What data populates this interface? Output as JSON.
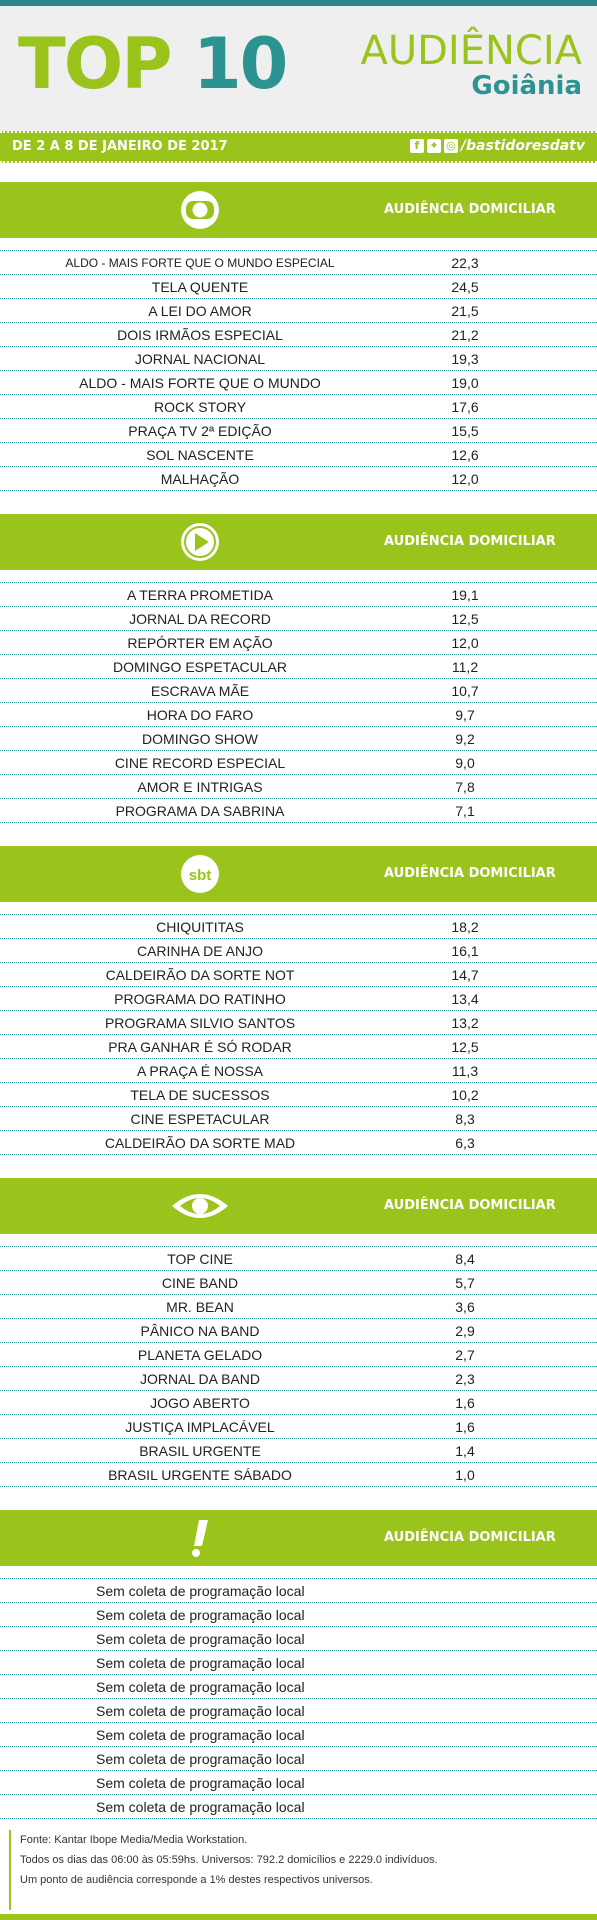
{
  "header": {
    "title_top": "TOP",
    "title_num": "10",
    "brand_1": "AUDIÊNCIA",
    "brand_2": "Goiânia"
  },
  "datebar": {
    "date": "DE 2 A 8 DE JANEIRO DE 2017",
    "handle": "/bastidoresdatv"
  },
  "sections": [
    {
      "logo": "globo-logo",
      "label": "AUDIÊNCIA DOMICILIAR",
      "rows": [
        {
          "name": "ALDO - MAIS FORTE QUE O MUNDO ESPECIAL",
          "value": "22,3"
        },
        {
          "name": "TELA QUENTE",
          "value": "24,5"
        },
        {
          "name": "A LEI DO AMOR",
          "value": "21,5"
        },
        {
          "name": "DOIS IRMÃOS ESPECIAL",
          "value": "21,2"
        },
        {
          "name": "JORNAL NACIONAL",
          "value": "19,3"
        },
        {
          "name": "ALDO - MAIS FORTE QUE O MUNDO",
          "value": "19,0"
        },
        {
          "name": "ROCK STORY",
          "value": "17,6"
        },
        {
          "name": "PRAÇA TV 2ª EDIÇÃO",
          "value": "15,5"
        },
        {
          "name": "SOL NASCENTE",
          "value": "12,6"
        },
        {
          "name": "MALHAÇÃO",
          "value": "12,0"
        }
      ]
    },
    {
      "logo": "record-logo",
      "label": "AUDIÊNCIA DOMICILIAR",
      "rows": [
        {
          "name": "A TERRA PROMETIDA",
          "value": "19,1"
        },
        {
          "name": "JORNAL DA RECORD",
          "value": "12,5"
        },
        {
          "name": "REPÓRTER EM AÇÃO",
          "value": "12,0"
        },
        {
          "name": "DOMINGO ESPETACULAR",
          "value": "11,2"
        },
        {
          "name": "ESCRAVA MÃE",
          "value": "10,7"
        },
        {
          "name": "HORA DO FARO",
          "value": "9,7"
        },
        {
          "name": "DOMINGO SHOW",
          "value": "9,2"
        },
        {
          "name": "CINE RECORD ESPECIAL",
          "value": "9,0"
        },
        {
          "name": "AMOR E INTRIGAS",
          "value": "7,8"
        },
        {
          "name": "PROGRAMA DA SABRINA",
          "value": "7,1"
        }
      ]
    },
    {
      "logo": "sbt-logo",
      "logo_text": "sbt",
      "label": "AUDIÊNCIA DOMICILIAR",
      "rows": [
        {
          "name": "CHIQUITITAS",
          "value": "18,2"
        },
        {
          "name": "CARINHA DE ANJO",
          "value": "16,1"
        },
        {
          "name": "CALDEIRÃO DA SORTE NOT",
          "value": "14,7"
        },
        {
          "name": "PROGRAMA DO RATINHO",
          "value": "13,4"
        },
        {
          "name": "PROGRAMA SILVIO SANTOS",
          "value": "13,2"
        },
        {
          "name": "PRA GANHAR É SÓ RODAR",
          "value": "12,5"
        },
        {
          "name": "A PRAÇA É NOSSA",
          "value": "11,3"
        },
        {
          "name": "TELA DE SUCESSOS",
          "value": "10,2"
        },
        {
          "name": "CINE ESPETACULAR",
          "value": "8,3"
        },
        {
          "name": "CALDEIRÃO DA SORTE MAD",
          "value": "6,3"
        }
      ]
    },
    {
      "logo": "band-logo",
      "label": "AUDIÊNCIA DOMICILIAR",
      "rows": [
        {
          "name": "TOP CINE",
          "value": "8,4"
        },
        {
          "name": "CINE BAND",
          "value": "5,7"
        },
        {
          "name": "MR. BEAN",
          "value": "3,6"
        },
        {
          "name": "PÂNICO NA BAND",
          "value": "2,9"
        },
        {
          "name": "PLANETA GELADO",
          "value": "2,7"
        },
        {
          "name": "JORNAL DA BAND",
          "value": "2,3"
        },
        {
          "name": "JOGO ABERTO",
          "value": "1,6"
        },
        {
          "name": "JUSTIÇA IMPLACÁVEL",
          "value": "1,6"
        },
        {
          "name": "BRASIL URGENTE",
          "value": "1,4"
        },
        {
          "name": "BRASIL URGENTE SÁBADO",
          "value": "1,0"
        }
      ]
    },
    {
      "logo": "redetv-logo",
      "label": "AUDIÊNCIA DOMICILIAR",
      "rows": [
        {
          "name": "Sem coleta de programação local",
          "value": ""
        },
        {
          "name": "Sem coleta de programação local",
          "value": ""
        },
        {
          "name": "Sem coleta de programação local",
          "value": ""
        },
        {
          "name": "Sem coleta de programação local",
          "value": ""
        },
        {
          "name": "Sem coleta de programação local",
          "value": ""
        },
        {
          "name": "Sem coleta de programação local",
          "value": ""
        },
        {
          "name": "Sem coleta de programação local",
          "value": ""
        },
        {
          "name": "Sem coleta de programação local",
          "value": ""
        },
        {
          "name": "Sem coleta de programação local",
          "value": ""
        },
        {
          "name": "Sem coleta de programação local",
          "value": ""
        }
      ]
    }
  ],
  "footer": {
    "line1": "Fonte: Kantar Ibope Media/Media Workstation.",
    "line2": "Todos os dias das 06:00 às 05:59hs. Universos: 792.2 domicílios e 2229.0 indivíduos.",
    "line3": "Um ponto de audiência corresponde a 1% destes respectivos universos."
  },
  "colors": {
    "green": "#9ac31c",
    "teal": "#2c9490"
  }
}
